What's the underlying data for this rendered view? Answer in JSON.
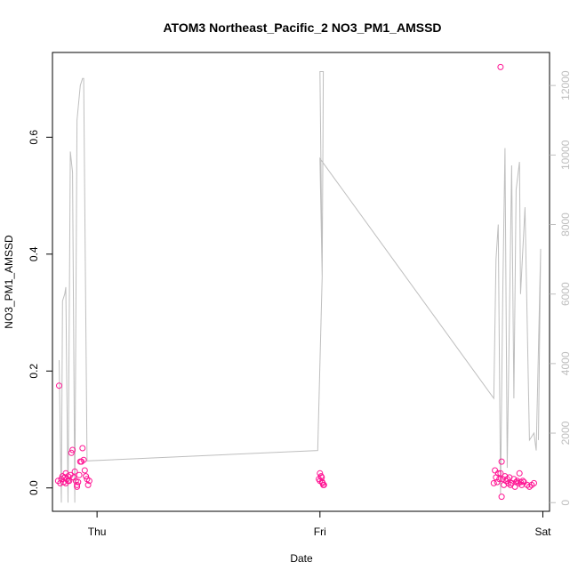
{
  "chart_data": {
    "type": "scatter",
    "title": "ATOM3 Northeast_Pacific_2 NO3_PM1_AMSSD",
    "xlabel": "Date",
    "ylabel": "NO3_PM1_AMSSD",
    "x_ticks": [
      "Thu",
      "Fri",
      "Sat"
    ],
    "x_range_days": [
      -0.2,
      2.03
    ],
    "ylim": [
      -0.04,
      0.745
    ],
    "y_ticks": [
      "0.0",
      "0.2",
      "0.4",
      "0.6"
    ],
    "y_tick_values": [
      0,
      0.2,
      0.4,
      0.6
    ],
    "right_axis": {
      "ylim": [
        -250,
        12950
      ],
      "ticks": [
        "0",
        "2000",
        "4000",
        "6000",
        "8000",
        "10000",
        "12000"
      ],
      "tick_values": [
        0,
        2000,
        4000,
        6000,
        8000,
        10000,
        12000
      ],
      "color": "#bebebe"
    },
    "colors": {
      "points": "#ff1493",
      "line": "#bebebe"
    },
    "series": [
      {
        "style": "points",
        "axis": "left",
        "points": [
          [
            -0.17,
            0.175
          ],
          [
            -0.175,
            0.012
          ],
          [
            -0.165,
            0.008
          ],
          [
            -0.16,
            0.015
          ],
          [
            -0.155,
            0.02
          ],
          [
            -0.15,
            0.01
          ],
          [
            -0.145,
            0.018
          ],
          [
            -0.14,
            0.025
          ],
          [
            -0.135,
            0.015
          ],
          [
            -0.13,
            0.02
          ],
          [
            -0.125,
            0.012
          ],
          [
            -0.12,
            0.022
          ],
          [
            -0.115,
            0.06
          ],
          [
            -0.11,
            0.065
          ],
          [
            -0.105,
            0.018
          ],
          [
            -0.1,
            0.028
          ],
          [
            -0.095,
            0.012
          ],
          [
            -0.09,
            0.005
          ],
          [
            -0.085,
            0.01
          ],
          [
            -0.08,
            0.022
          ],
          [
            -0.075,
            0.045
          ],
          [
            -0.07,
            0.045
          ],
          [
            -0.065,
            0.068
          ],
          [
            -0.06,
            0.048
          ],
          [
            -0.055,
            0.03
          ],
          [
            -0.05,
            0.02
          ],
          [
            -0.045,
            0.015
          ],
          [
            -0.04,
            0.005
          ],
          [
            -0.035,
            0.012
          ],
          [
            -0.09,
            0.002
          ],
          [
            -0.14,
            0.008
          ],
          [
            -0.13,
            0.012
          ],
          [
            0.995,
            0.015
          ],
          [
            1.0,
            0.025
          ],
          [
            1.005,
            0.02
          ],
          [
            1.01,
            0.01
          ],
          [
            1.015,
            0.005
          ],
          [
            1.0,
            0.012
          ],
          [
            1.008,
            0.018
          ],
          [
            1.012,
            0.008
          ],
          [
            1.018,
            0.005
          ],
          [
            1.78,
            0.008
          ],
          [
            1.785,
            0.03
          ],
          [
            1.79,
            0.018
          ],
          [
            1.795,
            0.01
          ],
          [
            1.8,
            0.025
          ],
          [
            1.805,
            0.015
          ],
          [
            1.81,
            0.025
          ],
          [
            1.815,
            0.045
          ],
          [
            1.82,
            0.015
          ],
          [
            1.815,
            -0.015
          ],
          [
            1.825,
            0.005
          ],
          [
            1.83,
            0.02
          ],
          [
            1.835,
            0.012
          ],
          [
            1.84,
            0.015
          ],
          [
            1.845,
            0.008
          ],
          [
            1.85,
            0.018
          ],
          [
            1.855,
            0.005
          ],
          [
            1.86,
            0.008
          ],
          [
            1.87,
            0.015
          ],
          [
            1.875,
            0.002
          ],
          [
            1.88,
            0.01
          ],
          [
            1.885,
            0.012
          ],
          [
            1.89,
            0.008
          ],
          [
            1.895,
            0.025
          ],
          [
            1.9,
            0.01
          ],
          [
            1.905,
            0.005
          ],
          [
            1.91,
            0.012
          ],
          [
            1.915,
            0.01
          ],
          [
            1.93,
            0.005
          ],
          [
            1.94,
            0.002
          ],
          [
            1.95,
            0.005
          ],
          [
            1.96,
            0.008
          ],
          [
            1.81,
            0.72
          ]
        ]
      },
      {
        "style": "line",
        "axis": "right",
        "points": [
          [
            -0.17,
            4100
          ],
          [
            -0.16,
            0
          ],
          [
            -0.155,
            5800
          ],
          [
            -0.145,
            6000
          ],
          [
            -0.14,
            6200
          ],
          [
            -0.13,
            0
          ],
          [
            -0.12,
            10100
          ],
          [
            -0.11,
            9500
          ],
          [
            -0.1,
            0
          ],
          [
            -0.09,
            11000
          ],
          [
            -0.075,
            12000
          ],
          [
            -0.065,
            12200
          ],
          [
            -0.06,
            12200
          ],
          [
            -0.045,
            1200
          ],
          [
            0.99,
            1500
          ],
          [
            1.01,
            6500
          ],
          [
            1.0,
            12400
          ],
          [
            1.015,
            12400
          ],
          [
            1.01,
            6500
          ],
          [
            1.0,
            9900
          ],
          [
            1.78,
            3000
          ],
          [
            1.79,
            7000
          ],
          [
            1.8,
            8000
          ],
          [
            1.81,
            250
          ],
          [
            1.82,
            6000
          ],
          [
            1.83,
            10200
          ],
          [
            1.84,
            1000
          ],
          [
            1.86,
            9700
          ],
          [
            1.87,
            3000
          ],
          [
            1.88,
            9000
          ],
          [
            1.895,
            9800
          ],
          [
            1.9,
            6000
          ],
          [
            1.92,
            8500
          ],
          [
            1.94,
            1800
          ],
          [
            1.96,
            2000
          ],
          [
            1.97,
            1500
          ],
          [
            1.99,
            7300
          ],
          [
            1.98,
            1800
          ]
        ]
      }
    ]
  }
}
